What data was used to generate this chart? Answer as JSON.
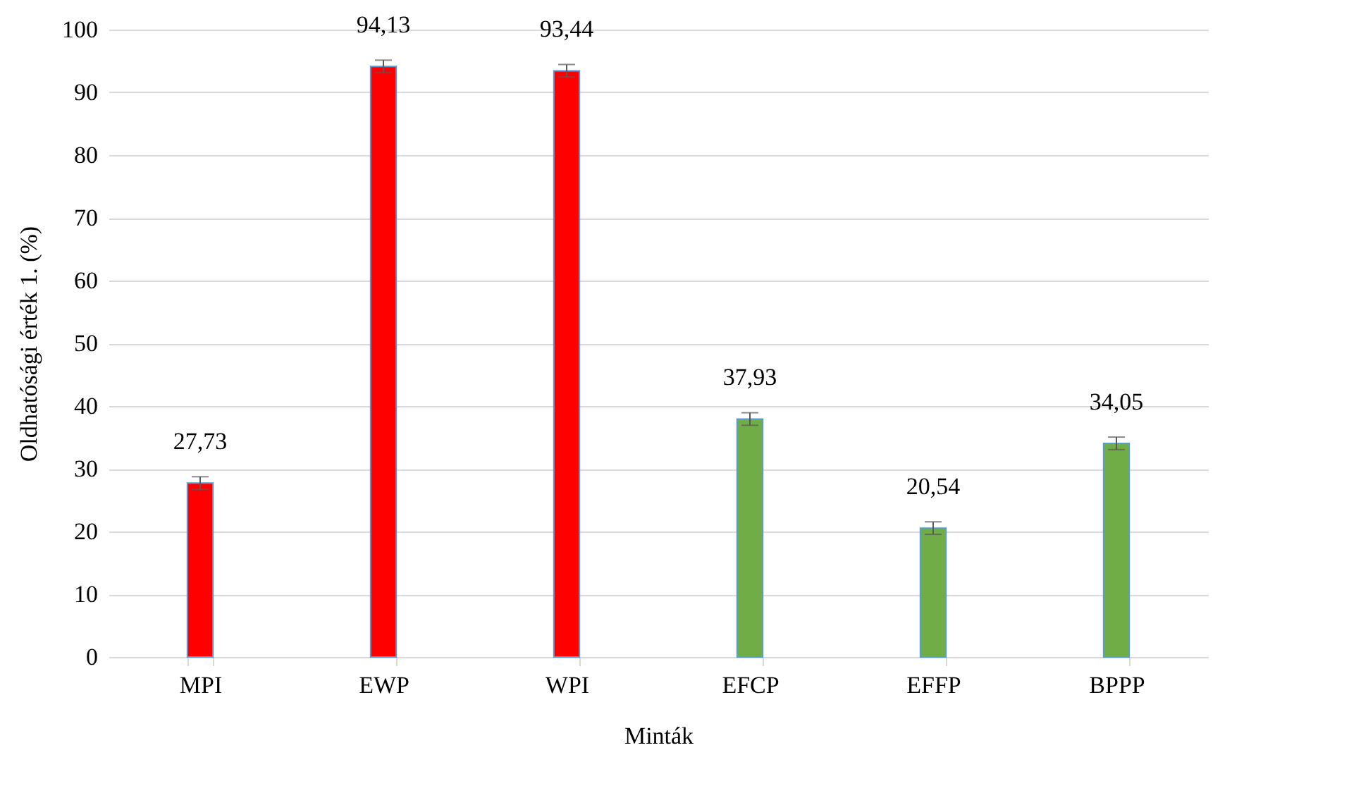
{
  "chart_data": {
    "type": "bar",
    "xlabel": "Minták",
    "ylabel": "Oldhatósági érték 1. (%)",
    "categories": [
      "MPI",
      "EWP",
      "WPI",
      "EFCP",
      "EFFP",
      "BPPP"
    ],
    "values": [
      27.73,
      94.13,
      93.44,
      37.93,
      20.54,
      34.05
    ],
    "colors": [
      "#ff0000",
      "#ff0000",
      "#ff0000",
      "#70ad47",
      "#70ad47",
      "#70ad47"
    ],
    "errors": [
      1,
      1,
      1,
      1,
      1,
      1
    ],
    "value_labels": [
      "27,73",
      "94,13",
      "93,44",
      "37,93",
      "20,54",
      "34,05"
    ],
    "ylim": [
      0,
      100
    ],
    "yticks": [
      0,
      10,
      20,
      30,
      40,
      50,
      60,
      70,
      80,
      90,
      100
    ],
    "grid": "y",
    "legend": false
  }
}
